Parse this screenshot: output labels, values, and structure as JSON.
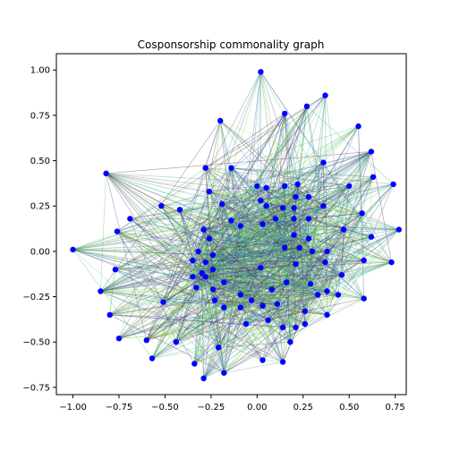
{
  "chart_data": {
    "type": "scatter",
    "title": "Cosponsorship commonality graph",
    "xlabel": "",
    "ylabel": "",
    "xlim": [
      -1.09,
      0.81
    ],
    "ylim": [
      -0.79,
      1.09
    ],
    "xticks": [
      -1.0,
      -0.75,
      -0.5,
      -0.25,
      0.0,
      0.25,
      0.5,
      0.75
    ],
    "xtick_labels": [
      "−1.00",
      "−0.75",
      "−0.50",
      "−0.25",
      "0.00",
      "0.25",
      "0.50",
      "0.75"
    ],
    "yticks": [
      -0.75,
      -0.5,
      -0.25,
      0.0,
      0.25,
      0.5,
      0.75,
      1.0
    ],
    "ytick_labels": [
      "−0.75",
      "−0.50",
      "−0.25",
      "0.00",
      "0.25",
      "0.50",
      "0.75",
      "1.00"
    ],
    "grid": false,
    "node_color": "#0000ff",
    "edge_colors": [
      "#440154",
      "#482878",
      "#3e4989",
      "#31688e",
      "#26828e",
      "#1f9e89",
      "#35b779",
      "#6ece58",
      "#b5de2b"
    ],
    "nodes": [
      {
        "x": 0.02,
        "y": 0.99
      },
      {
        "x": 0.37,
        "y": 0.86
      },
      {
        "x": -0.2,
        "y": 0.72
      },
      {
        "x": 0.15,
        "y": 0.76
      },
      {
        "x": 0.27,
        "y": 0.8
      },
      {
        "x": 0.55,
        "y": 0.69
      },
      {
        "x": 0.62,
        "y": 0.55
      },
      {
        "x": 0.36,
        "y": 0.49
      },
      {
        "x": -0.28,
        "y": 0.46
      },
      {
        "x": -0.14,
        "y": 0.46
      },
      {
        "x": -0.82,
        "y": 0.43
      },
      {
        "x": 0.63,
        "y": 0.41
      },
      {
        "x": 0.74,
        "y": 0.37
      },
      {
        "x": 0.5,
        "y": 0.36
      },
      {
        "x": 0.0,
        "y": 0.36
      },
      {
        "x": 0.05,
        "y": 0.35
      },
      {
        "x": 0.15,
        "y": 0.36
      },
      {
        "x": 0.22,
        "y": 0.37
      },
      {
        "x": -0.26,
        "y": 0.33
      },
      {
        "x": 0.02,
        "y": 0.28
      },
      {
        "x": 0.21,
        "y": 0.3
      },
      {
        "x": 0.28,
        "y": 0.3
      },
      {
        "x": -0.52,
        "y": 0.25
      },
      {
        "x": 0.05,
        "y": 0.25
      },
      {
        "x": 0.14,
        "y": 0.24
      },
      {
        "x": 0.2,
        "y": 0.24
      },
      {
        "x": 0.36,
        "y": 0.25
      },
      {
        "x": -0.42,
        "y": 0.23
      },
      {
        "x": -0.19,
        "y": 0.26
      },
      {
        "x": 0.57,
        "y": 0.21
      },
      {
        "x": -0.69,
        "y": 0.18
      },
      {
        "x": -0.14,
        "y": 0.17
      },
      {
        "x": 0.1,
        "y": 0.18
      },
      {
        "x": 0.2,
        "y": 0.18
      },
      {
        "x": 0.28,
        "y": 0.18
      },
      {
        "x": -0.09,
        "y": 0.14
      },
      {
        "x": 0.03,
        "y": 0.15
      },
      {
        "x": -0.29,
        "y": 0.12
      },
      {
        "x": 0.47,
        "y": 0.12
      },
      {
        "x": 0.77,
        "y": 0.12
      },
      {
        "x": -0.76,
        "y": 0.11
      },
      {
        "x": -0.26,
        "y": 0.07
      },
      {
        "x": 0.2,
        "y": 0.09
      },
      {
        "x": 0.28,
        "y": 0.07
      },
      {
        "x": 0.62,
        "y": 0.08
      },
      {
        "x": -1.0,
        "y": 0.01
      },
      {
        "x": -0.32,
        "y": 0.0
      },
      {
        "x": 0.15,
        "y": 0.02
      },
      {
        "x": 0.23,
        "y": 0.02
      },
      {
        "x": 0.3,
        "y": 0.0
      },
      {
        "x": 0.38,
        "y": 0.0
      },
      {
        "x": -0.24,
        "y": -0.02
      },
      {
        "x": -0.35,
        "y": -0.05
      },
      {
        "x": -0.28,
        "y": -0.06
      },
      {
        "x": 0.21,
        "y": -0.07
      },
      {
        "x": 0.37,
        "y": -0.06
      },
      {
        "x": 0.58,
        "y": -0.05
      },
      {
        "x": 0.73,
        "y": -0.06
      },
      {
        "x": -0.77,
        "y": -0.1
      },
      {
        "x": 0.02,
        "y": -0.09
      },
      {
        "x": -0.3,
        "y": -0.12
      },
      {
        "x": -0.24,
        "y": -0.1
      },
      {
        "x": 0.46,
        "y": -0.13
      },
      {
        "x": -0.35,
        "y": -0.14
      },
      {
        "x": -0.28,
        "y": -0.14
      },
      {
        "x": -0.18,
        "y": -0.17
      },
      {
        "x": 0.16,
        "y": -0.17
      },
      {
        "x": 0.29,
        "y": -0.18
      },
      {
        "x": -0.33,
        "y": -0.2
      },
      {
        "x": -0.24,
        "y": -0.21
      },
      {
        "x": 0.08,
        "y": -0.21
      },
      {
        "x": 0.38,
        "y": -0.22
      },
      {
        "x": -0.85,
        "y": -0.22
      },
      {
        "x": -0.09,
        "y": -0.24
      },
      {
        "x": 0.33,
        "y": -0.24
      },
      {
        "x": 0.44,
        "y": -0.24
      },
      {
        "x": -0.51,
        "y": -0.28
      },
      {
        "x": -0.23,
        "y": -0.27
      },
      {
        "x": -0.03,
        "y": -0.27
      },
      {
        "x": 0.58,
        "y": -0.26
      },
      {
        "x": -0.18,
        "y": -0.31
      },
      {
        "x": -0.09,
        "y": -0.31
      },
      {
        "x": 0.03,
        "y": -0.3
      },
      {
        "x": 0.11,
        "y": -0.29
      },
      {
        "x": 0.26,
        "y": -0.33
      },
      {
        "x": -0.8,
        "y": -0.35
      },
      {
        "x": 0.38,
        "y": -0.35
      },
      {
        "x": -0.06,
        "y": -0.4
      },
      {
        "x": 0.06,
        "y": -0.38
      },
      {
        "x": 0.14,
        "y": -0.42
      },
      {
        "x": 0.21,
        "y": -0.42
      },
      {
        "x": 0.26,
        "y": -0.4
      },
      {
        "x": -0.75,
        "y": -0.48
      },
      {
        "x": -0.6,
        "y": -0.49
      },
      {
        "x": -0.44,
        "y": -0.5
      },
      {
        "x": 0.18,
        "y": -0.5
      },
      {
        "x": -0.21,
        "y": -0.53
      },
      {
        "x": -0.57,
        "y": -0.59
      },
      {
        "x": -0.34,
        "y": -0.62
      },
      {
        "x": 0.03,
        "y": -0.6
      },
      {
        "x": 0.14,
        "y": -0.61
      },
      {
        "x": -0.18,
        "y": -0.67
      },
      {
        "x": -0.29,
        "y": -0.7
      }
    ]
  }
}
